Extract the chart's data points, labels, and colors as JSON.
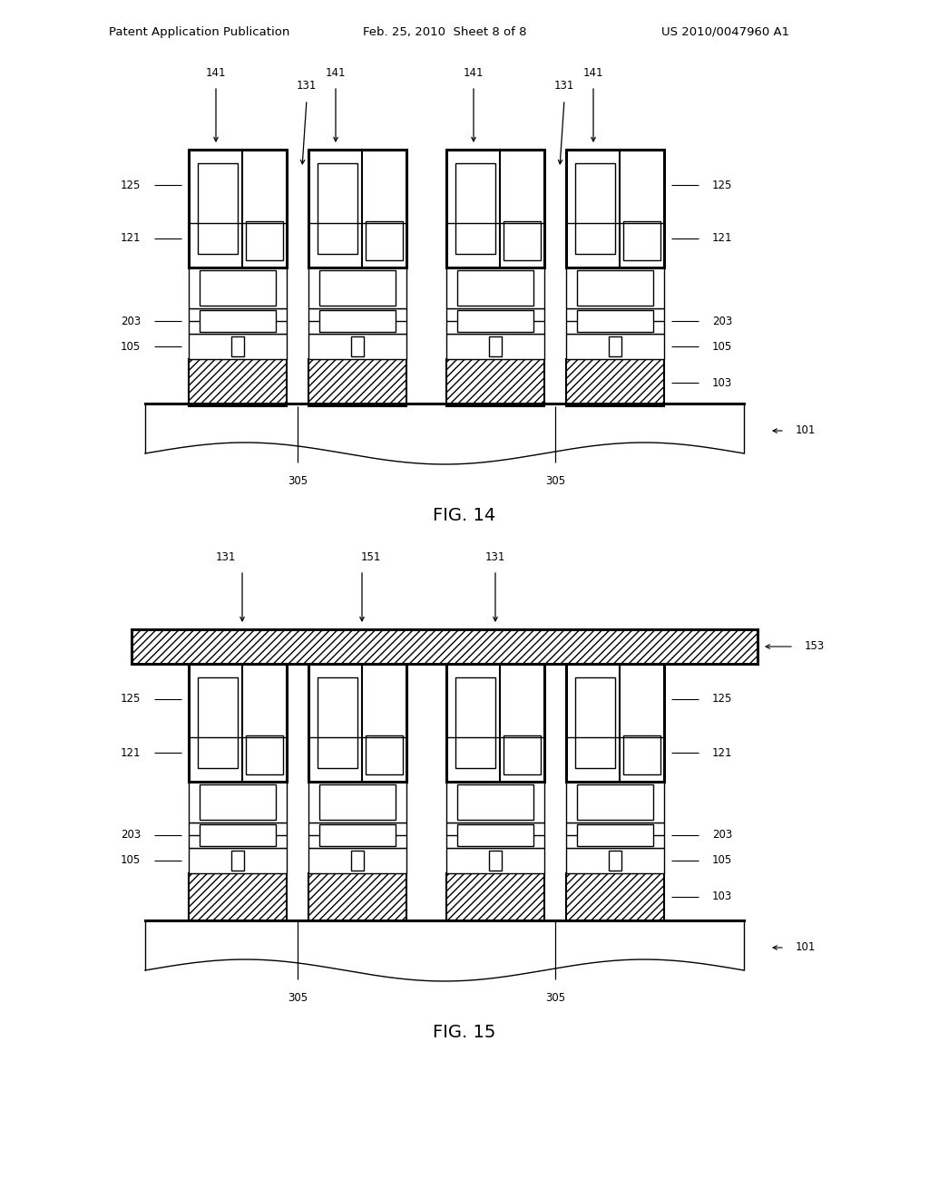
{
  "bg_color": "#ffffff",
  "header_left": "Patent Application Publication",
  "header_center": "Feb. 25, 2010  Sheet 8 of 8",
  "header_right": "US 2010/0047960 A1",
  "fig14_label": "FIG. 14",
  "fig15_label": "FIG. 15"
}
